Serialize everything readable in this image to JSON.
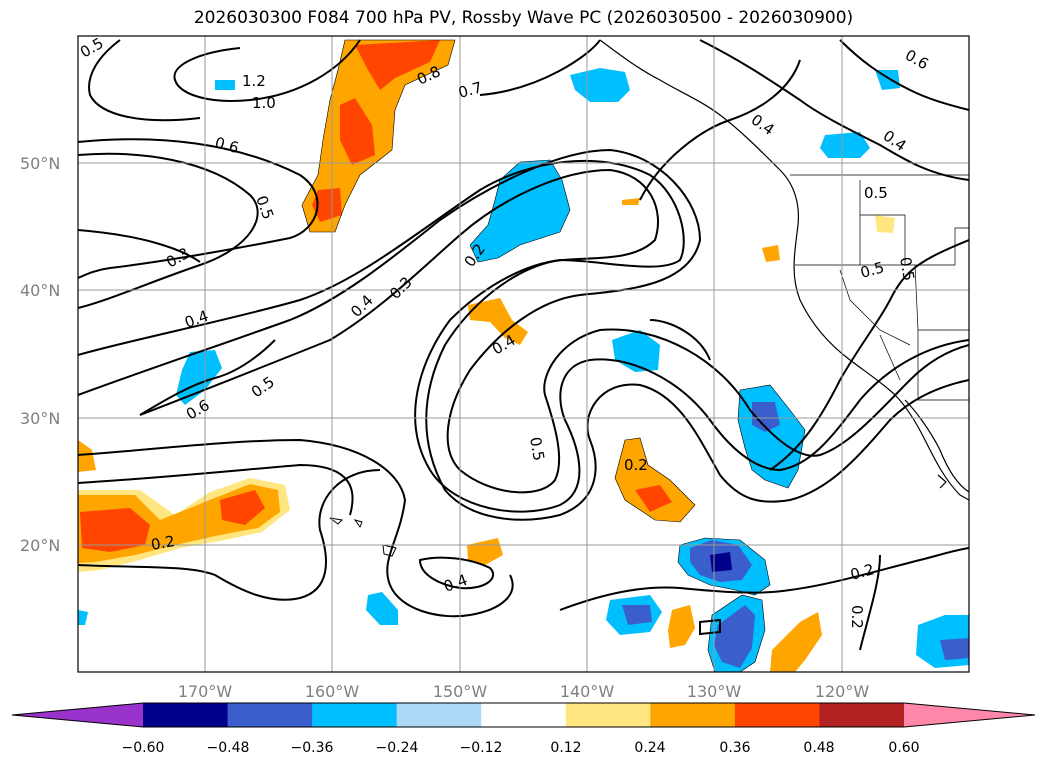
{
  "title": "2026030300 F084 700 hPa PV, Rossby Wave PC (2026030500 - 2026030900)",
  "map": {
    "lat_labels": [
      "50°N",
      "40°N",
      "30°N",
      "20°N"
    ],
    "lon_labels": [
      "170°W",
      "160°W",
      "150°W",
      "140°W",
      "130°W",
      "120°W"
    ],
    "contour_labels": [
      "0.5",
      "1.2",
      "1.0",
      "0.8",
      "0.7",
      "0.6",
      "0.5",
      "0.3",
      "0.4",
      "0.2",
      "0.4",
      "0.3",
      "0.4",
      "0.5",
      "0.6",
      "0.5",
      "0.2",
      "0.4",
      "0.2",
      "0.2",
      "0.2",
      "0.4",
      "0.4",
      "0.5",
      "0.5",
      "0.6",
      "0.5"
    ]
  },
  "colorbar": {
    "ticks": [
      "−0.60",
      "−0.48",
      "−0.36",
      "−0.24",
      "−0.12",
      "0.12",
      "0.24",
      "0.36",
      "0.48",
      "0.60"
    ],
    "colors": [
      "#9933cc",
      "#00008b",
      "#3a5fcd",
      "#00bfff",
      "#add8f7",
      "#ffffff",
      "#ffe680",
      "#ffa500",
      "#ff4500",
      "#b22222",
      "#ff88aa"
    ]
  }
}
